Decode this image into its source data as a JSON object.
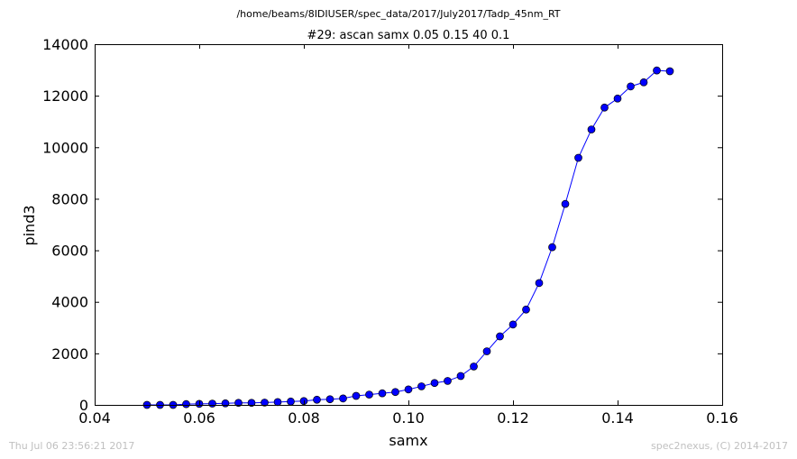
{
  "chart_data": {
    "type": "line",
    "suptitle": "/home/beams/8IDIUSER/spec_data/2017/July2017/Tadp_45nm_RT",
    "title": "#29: ascan  samx 0.05 0.15  40 0.1",
    "xlabel": "samx",
    "ylabel": "pind3",
    "xlim": [
      0.04,
      0.16
    ],
    "ylim": [
      0,
      14000
    ],
    "xticks": [
      "0.04",
      "0.06",
      "0.08",
      "0.10",
      "0.12",
      "0.14",
      "0.16"
    ],
    "yticks": [
      "0",
      "2000",
      "4000",
      "6000",
      "8000",
      "10000",
      "12000",
      "14000"
    ],
    "grid": false,
    "series": [
      {
        "color": "#0000ff",
        "marker": "circle",
        "x": [
          0.05,
          0.0525,
          0.055,
          0.0575,
          0.06,
          0.0625,
          0.065,
          0.0675,
          0.07,
          0.0725,
          0.075,
          0.0775,
          0.08,
          0.0825,
          0.085,
          0.0875,
          0.09,
          0.0925,
          0.095,
          0.0975,
          0.1,
          0.1025,
          0.105,
          0.1075,
          0.11,
          0.1125,
          0.115,
          0.1175,
          0.12,
          0.1225,
          0.125,
          0.1275,
          0.13,
          0.1325,
          0.135,
          0.1375,
          0.14,
          0.1425,
          0.145,
          0.1475,
          0.15
        ],
        "y": [
          0,
          0,
          0,
          30,
          40,
          50,
          60,
          80,
          80,
          90,
          110,
          130,
          150,
          200,
          220,
          250,
          350,
          400,
          450,
          500,
          600,
          720,
          850,
          930,
          1120,
          1490,
          2080,
          2660,
          3120,
          3700,
          4730,
          6120,
          7800,
          9590,
          10690,
          11540,
          11890,
          12360,
          12520,
          12980,
          12950
        ]
      }
    ]
  },
  "footer": {
    "timestamp": "Thu Jul 06 23:56:21 2017",
    "credit": "spec2nexus, (C) 2014-2017"
  }
}
